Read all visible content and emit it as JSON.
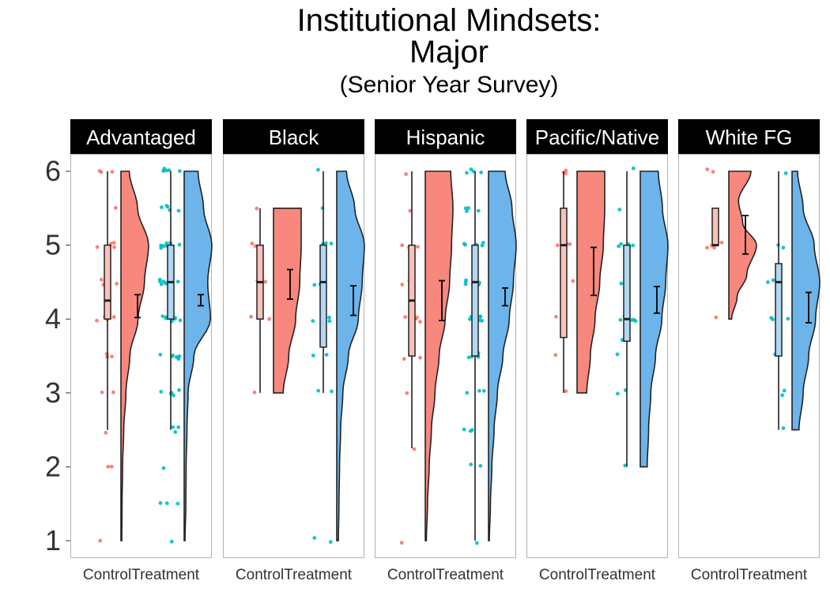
{
  "chart_data": {
    "type": "raincloud",
    "title": [
      "Institutional Mindsets:",
      "Major"
    ],
    "subtitle": "(Senior Year Survey)",
    "xlabel": "",
    "ylabel": "",
    "ylim": [
      1,
      6
    ],
    "yticks": [
      1,
      2,
      3,
      4,
      5,
      6
    ],
    "groups": [
      "Control",
      "Treatment"
    ],
    "colors": {
      "Control": "#F8766D",
      "Treatment": "#00BFC4",
      "ControlCloud": "#F8877E",
      "TreatmentCloud": "#6CB4EA",
      "ControlBox": "#FBC0B8",
      "TreatmentBox": "#B0D8F4"
    },
    "panels": [
      {
        "label": "Advantaged",
        "Control": {
          "box": {
            "min": 2.5,
            "q1": 4.0,
            "median": 4.25,
            "q3": 5.0,
            "max": 6.0
          },
          "mean": 4.18,
          "ci": [
            4.02,
            4.33
          ],
          "density": [
            [
              1.0,
              0.03
            ],
            [
              1.5,
              0.04
            ],
            [
              2.0,
              0.06
            ],
            [
              2.5,
              0.1
            ],
            [
              3.0,
              0.18
            ],
            [
              3.5,
              0.32
            ],
            [
              4.0,
              0.62
            ],
            [
              4.5,
              0.85
            ],
            [
              5.0,
              1.0
            ],
            [
              5.5,
              0.6
            ],
            [
              6.0,
              0.3
            ]
          ],
          "points": [
            1.0,
            2.0,
            2.0,
            2.5,
            3.0,
            3.0,
            3.5,
            3.5,
            3.5,
            4.0,
            4.0,
            4.0,
            4.0,
            4.0,
            4.0,
            4.5,
            4.5,
            4.5,
            4.5,
            5.0,
            5.0,
            5.0,
            5.0,
            5.0,
            5.5,
            6.0,
            6.0,
            6.0
          ]
        },
        "Treatment": {
          "box": {
            "min": 2.5,
            "q1": 4.0,
            "median": 4.5,
            "q3": 5.0,
            "max": 6.0
          },
          "mean": 4.25,
          "ci": [
            4.18,
            4.33
          ],
          "density": [
            [
              1.0,
              0.03
            ],
            [
              1.5,
              0.06
            ],
            [
              2.0,
              0.07
            ],
            [
              2.5,
              0.1
            ],
            [
              3.0,
              0.14
            ],
            [
              3.5,
              0.35
            ],
            [
              4.0,
              0.95
            ],
            [
              4.5,
              0.85
            ],
            [
              5.0,
              1.0
            ],
            [
              5.5,
              0.7
            ],
            [
              6.0,
              0.5
            ]
          ],
          "points": [
            1.0,
            1.5,
            1.5,
            1.5,
            2.0,
            2.5,
            2.5,
            2.5,
            3.0,
            3.0,
            3.0,
            3.0,
            3.0,
            3.5,
            3.5,
            3.5,
            3.5,
            3.5,
            3.5,
            3.5,
            4.0,
            4.0,
            4.0,
            4.0,
            4.0,
            4.0,
            4.0,
            4.0,
            4.0,
            4.5,
            4.5,
            4.5,
            4.5,
            4.5,
            4.5,
            4.5,
            4.5,
            4.5,
            5.0,
            5.0,
            5.0,
            5.0,
            5.0,
            5.0,
            5.0,
            5.0,
            5.0,
            5.5,
            5.5,
            5.5,
            5.5,
            5.5,
            6.0,
            6.0,
            6.0,
            6.0,
            6.0,
            6.0
          ]
        }
      },
      {
        "label": "Black",
        "Control": {
          "box": {
            "min": 3.0,
            "q1": 4.0,
            "median": 4.5,
            "q3": 5.0,
            "max": 5.5
          },
          "mean": 4.45,
          "ci": [
            4.27,
            4.67
          ],
          "density": [
            [
              3.0,
              0.35
            ],
            [
              3.5,
              0.55
            ],
            [
              4.0,
              0.8
            ],
            [
              4.5,
              0.95
            ],
            [
              5.0,
              1.0
            ],
            [
              5.5,
              1.0
            ]
          ],
          "points": [
            3.0,
            4.0,
            4.0,
            4.0,
            4.5,
            4.5,
            5.0,
            5.0,
            5.5
          ]
        },
        "Treatment": {
          "box": {
            "min": 3.0,
            "q1": 3.62,
            "median": 4.5,
            "q3": 5.0,
            "max": 6.0
          },
          "mean": 4.25,
          "ci": [
            4.05,
            4.45
          ],
          "density": [
            [
              1.0,
              0.06
            ],
            [
              1.5,
              0.08
            ],
            [
              2.0,
              0.1
            ],
            [
              2.5,
              0.14
            ],
            [
              3.0,
              0.22
            ],
            [
              3.5,
              0.42
            ],
            [
              4.0,
              0.78
            ],
            [
              4.5,
              0.92
            ],
            [
              5.0,
              1.0
            ],
            [
              5.5,
              0.65
            ],
            [
              6.0,
              0.35
            ]
          ],
          "points": [
            1.0,
            1.0,
            3.0,
            3.0,
            3.5,
            3.5,
            4.0,
            4.0,
            4.0,
            4.0,
            4.5,
            4.5,
            4.5,
            5.0,
            5.0,
            5.0,
            5.5,
            6.0
          ]
        }
      },
      {
        "label": "Hispanic",
        "Control": {
          "box": {
            "min": 2.25,
            "q1": 3.5,
            "median": 4.25,
            "q3": 5.0,
            "max": 6.0
          },
          "mean": 4.25,
          "ci": [
            3.98,
            4.52
          ],
          "density": [
            [
              1.0,
              0.04
            ],
            [
              1.5,
              0.08
            ],
            [
              2.0,
              0.14
            ],
            [
              2.5,
              0.22
            ],
            [
              3.0,
              0.35
            ],
            [
              3.5,
              0.5
            ],
            [
              4.0,
              0.72
            ],
            [
              4.5,
              0.88
            ],
            [
              5.0,
              0.95
            ],
            [
              5.5,
              1.0
            ],
            [
              6.0,
              0.92
            ]
          ],
          "points": [
            1.0,
            2.25,
            3.0,
            3.5,
            3.5,
            4.0,
            4.0,
            4.0,
            4.0,
            4.5,
            4.5,
            5.0,
            5.0,
            5.0,
            5.5,
            6.0
          ]
        },
        "Treatment": {
          "box": {
            "min": 1.0,
            "q1": 3.5,
            "median": 4.5,
            "q3": 5.0,
            "max": 6.0
          },
          "mean": 4.3,
          "ci": [
            4.18,
            4.42
          ],
          "density": [
            [
              1.0,
              0.03
            ],
            [
              1.5,
              0.07
            ],
            [
              2.0,
              0.12
            ],
            [
              2.5,
              0.2
            ],
            [
              3.0,
              0.32
            ],
            [
              3.5,
              0.52
            ],
            [
              4.0,
              0.75
            ],
            [
              4.5,
              0.9
            ],
            [
              5.0,
              1.0
            ],
            [
              5.5,
              0.85
            ],
            [
              6.0,
              0.6
            ]
          ],
          "points": [
            1.0,
            2.0,
            2.0,
            2.5,
            2.5,
            2.5,
            3.0,
            3.0,
            3.0,
            3.5,
            3.5,
            3.5,
            3.5,
            3.5,
            4.0,
            4.0,
            4.0,
            4.0,
            4.0,
            4.0,
            4.0,
            4.5,
            4.5,
            4.5,
            4.5,
            4.5,
            4.5,
            5.0,
            5.0,
            5.0,
            5.0,
            5.0,
            5.0,
            5.5,
            5.5,
            5.5,
            5.5,
            6.0,
            6.0,
            6.0,
            6.0
          ]
        }
      },
      {
        "label": "Pacific/Native",
        "Control": {
          "box": {
            "min": 3.0,
            "q1": 3.75,
            "median": 5.0,
            "q3": 5.5,
            "max": 6.0
          },
          "mean": 4.65,
          "ci": [
            4.32,
            4.97
          ],
          "density": [
            [
              3.0,
              0.35
            ],
            [
              3.5,
              0.48
            ],
            [
              4.0,
              0.65
            ],
            [
              4.5,
              0.82
            ],
            [
              5.0,
              0.95
            ],
            [
              5.5,
              1.0
            ],
            [
              6.0,
              1.0
            ]
          ],
          "points": [
            3.0,
            3.5,
            4.0,
            4.5,
            5.0,
            5.0,
            5.0,
            6.0,
            6.0,
            6.0
          ]
        },
        "Treatment": {
          "box": {
            "min": 2.0,
            "q1": 3.7,
            "median": 4.0,
            "q3": 5.0,
            "max": 6.0
          },
          "mean": 4.25,
          "ci": [
            4.08,
            4.44
          ],
          "density": [
            [
              2.0,
              0.25
            ],
            [
              2.5,
              0.3
            ],
            [
              3.0,
              0.38
            ],
            [
              3.5,
              0.55
            ],
            [
              4.0,
              0.78
            ],
            [
              4.5,
              0.92
            ],
            [
              5.0,
              1.0
            ],
            [
              5.5,
              0.8
            ],
            [
              6.0,
              0.65
            ]
          ],
          "points": [
            2.0,
            3.0,
            3.0,
            3.5,
            3.75,
            4.0,
            4.0,
            4.0,
            4.0,
            4.0,
            4.5,
            5.0,
            5.0,
            5.0,
            5.0,
            5.0,
            5.5,
            6.0
          ]
        }
      },
      {
        "label": "White FG",
        "Control": {
          "box": {
            "min": 5.0,
            "q1": 5.0,
            "median": 5.0,
            "q3": 5.5,
            "max": 5.5
          },
          "mean": 5.15,
          "ci": [
            4.88,
            5.4
          ],
          "density": [
            [
              4.0,
              0.1
            ],
            [
              4.3,
              0.3
            ],
            [
              4.6,
              0.65
            ],
            [
              5.0,
              1.0
            ],
            [
              5.3,
              0.5
            ],
            [
              5.6,
              0.35
            ],
            [
              6.0,
              0.8
            ]
          ],
          "points": [
            4.0,
            5.0,
            5.0,
            5.0,
            5.0,
            6.0,
            6.0
          ]
        },
        "Treatment": {
          "box": {
            "min": 2.5,
            "q1": 3.5,
            "median": 4.5,
            "q3": 4.75,
            "max": 6.0
          },
          "mean": 4.15,
          "ci": [
            3.95,
            4.36
          ],
          "density": [
            [
              2.5,
              0.25
            ],
            [
              3.0,
              0.4
            ],
            [
              3.5,
              0.6
            ],
            [
              4.0,
              0.85
            ],
            [
              4.5,
              1.0
            ],
            [
              5.0,
              0.8
            ],
            [
              5.5,
              0.4
            ],
            [
              6.0,
              0.2
            ]
          ],
          "points": [
            2.5,
            3.0,
            3.0,
            3.5,
            4.0,
            4.0,
            4.0,
            4.5,
            4.5,
            4.5,
            5.0,
            5.0,
            6.0
          ]
        }
      }
    ]
  }
}
